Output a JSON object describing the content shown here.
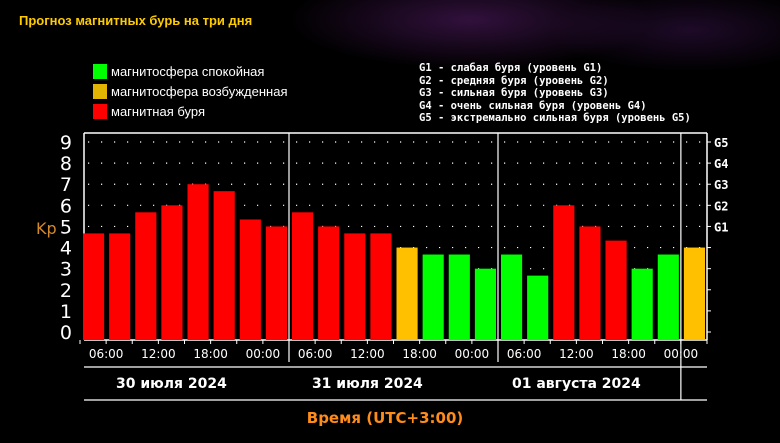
{
  "title": "Прогноз магнитных бурь на три дня",
  "legend": [
    {
      "label": "магнитосфера спокойная",
      "color": "#00ff00"
    },
    {
      "label": "магнитосфера возбужденная",
      "color": "#ffc000"
    },
    {
      "label": "магнитная буря",
      "color": "#ff0000"
    }
  ],
  "g_legend": [
    "G1 - слабая буря (уровень G1)",
    "G2 - средняя буря (уровень G2)",
    "G3 - сильная буря (уровень G3)",
    "G4 - очень сильная буря (уровень G4)",
    "G5 - экстремально сильная буря (уровень G5)"
  ],
  "chart_data": {
    "type": "bar",
    "ylabel": "Kp",
    "xlabel": "Время (UTC+3:00)",
    "ylim": [
      0,
      9
    ],
    "y_ticks": [
      "0",
      "1",
      "2",
      "3",
      "4",
      "5",
      "6",
      "7",
      "8",
      "9"
    ],
    "right_ticks": [
      {
        "label": "G1",
        "kp": 5
      },
      {
        "label": "G2",
        "kp": 6
      },
      {
        "label": "G3",
        "kp": 7
      },
      {
        "label": "G4",
        "kp": 8
      },
      {
        "label": "G5",
        "kp": 9
      }
    ],
    "x_tick_labels": [
      "06:00",
      "12:00",
      "18:00",
      "00:00",
      "06:00",
      "12:00",
      "18:00",
      "00:00",
      "06:00",
      "12:00",
      "18:00",
      "00:00"
    ],
    "days": [
      "30 июля 2024",
      "31 июля 2024",
      "01 августа 2024"
    ],
    "grid": "dotted",
    "values": [
      4.67,
      4.67,
      5.67,
      6.0,
      7.0,
      6.67,
      5.33,
      5.0,
      5.67,
      5.0,
      4.67,
      4.67,
      4.0,
      3.67,
      3.67,
      3.0,
      3.67,
      2.67,
      6.0,
      5.0,
      4.33,
      3.0,
      3.67,
      4.0
    ],
    "levels": [
      "storm",
      "storm",
      "storm",
      "storm",
      "storm",
      "storm",
      "storm",
      "storm",
      "storm",
      "storm",
      "storm",
      "storm",
      "active",
      "quiet",
      "quiet",
      "quiet",
      "quiet",
      "quiet",
      "storm",
      "storm",
      "storm",
      "quiet",
      "quiet",
      "active"
    ],
    "level_colors": {
      "quiet": "#00ff00",
      "active": "#ffc000",
      "storm": "#ff0000"
    }
  }
}
